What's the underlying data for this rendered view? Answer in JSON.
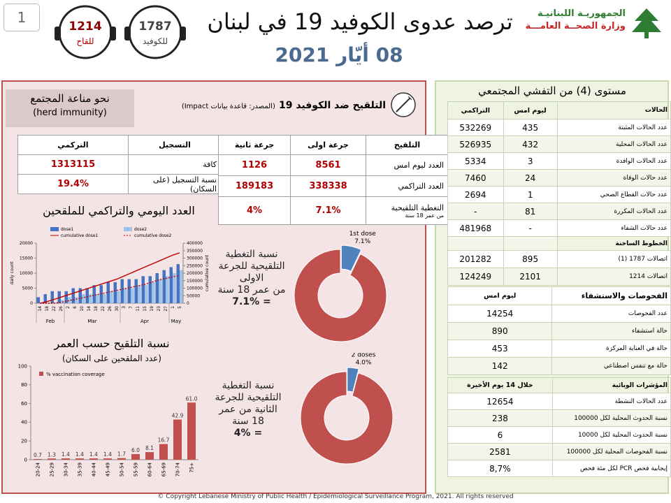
{
  "header": {
    "page_number": "1",
    "stat_vaccine": {
      "value": "1214",
      "label": "للقاح"
    },
    "stat_covid": {
      "value": "1787",
      "label": "للكوفيد"
    },
    "title": "ترصد عدوى الكوفيد 19 في لبنان",
    "date": "08 أيّار 2021",
    "ministry_line1": "الجمهوريـة اللبنانيـة",
    "ministry_line2": "وزارة الصحــة العامـــة"
  },
  "left": {
    "herd_title": "نحو مناعة المجتمع",
    "herd_subtitle": "(herd immunity)",
    "vaccination_title": "التلقيح ضد الكوفيد 19",
    "source": "(المصدر: قاعدة بيانات Impact)",
    "reg_table": {
      "header": [
        "التسجيل",
        "التركمي"
      ],
      "rows": [
        [
          "كافة",
          "1313115"
        ],
        [
          "نسبة التسجيل (على السكان)",
          "19.4%"
        ]
      ]
    },
    "vacc_table": {
      "header": [
        "التلقيح",
        "جرعة اولى",
        "جرعة ثانية"
      ],
      "rows": [
        [
          "العدد ليوم امس",
          "8561",
          "1126"
        ],
        [
          "العدد التراكمي",
          "338338",
          "189183"
        ],
        [
          "التغطية التلقيحية",
          "7.1%",
          "4%"
        ]
      ],
      "coverage_note": "من عمر 18 سنة"
    },
    "daily_title": "العدد اليومي والتراكمي للملقحين",
    "age_title": "نسبة التلقيح حسب العمر",
    "age_subtitle": "(عدد الملقحين على السكان)",
    "dose1_text": [
      "نسبة التغطية",
      "التلقيحية للجرعة",
      "الاولى",
      "من عمر 18 سنة",
      "= 7.1%"
    ],
    "dose2_text": [
      "نسبة التغطية",
      "التلقيحية للجرعة",
      "الثانية من عمر",
      "18 سنة",
      "= 4%"
    ]
  },
  "right": {
    "title": "مستوى (4) من التفشي المجتمعي",
    "cases_table": {
      "header": [
        "الحالات",
        "ليوم امس",
        "التراكمي"
      ],
      "rows": [
        [
          "عدد الحالات المثبتة",
          "435",
          "532269"
        ],
        [
          "عدد الحالات المحلية",
          "432",
          "526935"
        ],
        [
          "عدد الحالات الوافدة",
          "3",
          "5334"
        ],
        [
          "عدد حالات الوفاة",
          "24",
          "7460"
        ],
        [
          "عدد حالات القطاع الصحي",
          "1",
          "2694"
        ],
        [
          "عدد الحالات المكررة",
          "81",
          "-"
        ],
        [
          "عدد حالات الشفاء",
          "-",
          "481968"
        ]
      ]
    },
    "hotlines": {
      "title": "الخطوط الساخنة",
      "rows": [
        [
          "اتصالات 1787 (1)",
          "895",
          "201282"
        ],
        [
          "اتصالات 1214",
          "2101",
          "124249"
        ]
      ]
    },
    "tests_table": {
      "header": [
        "الفحوصات والاستشفاء",
        "ليوم امس"
      ],
      "rows": [
        [
          "عدد الفحوصات",
          "14254"
        ],
        [
          "حالة استشفاء",
          "890"
        ],
        [
          "حالة في العناية المركزة",
          "453"
        ],
        [
          "حالة مع تنفس اصطناعي",
          "142"
        ]
      ]
    },
    "indicators_table": {
      "header": [
        "المؤشرات الوبائية",
        "خلال 14 يوم الأخيرة"
      ],
      "rows": [
        [
          "عدد الحالات النشطة",
          "12654"
        ],
        [
          "نسبة الحدوث المحلية لكل 100000",
          "238"
        ],
        [
          "نسبة الحدوث المحلية لكل 10000",
          "6"
        ],
        [
          "نسبة الفحوصات المحلية لكل 100000",
          "2581"
        ],
        [
          "إيجابية فحص PCR لكل مئة فحص",
          "8,7%"
        ]
      ]
    }
  },
  "footer": "© Copyright Lebanese Ministry of Public Health / Epidemiological Surveillance Program, 2021. All rights reserved",
  "chart_data": [
    {
      "type": "bar",
      "categories": [
        "14",
        "18",
        "22",
        "26",
        "2",
        "6",
        "10",
        "14",
        "18",
        "22",
        "26",
        "30",
        "3",
        "7",
        "11",
        "15",
        "19",
        "23",
        "27",
        "1",
        "5"
      ],
      "x_groups": [
        {
          "label": "Feb",
          "start": 0,
          "end": 3
        },
        {
          "label": "Mar",
          "start": 4,
          "end": 11
        },
        {
          "label": "Apr",
          "start": 12,
          "end": 18
        },
        {
          "label": "May",
          "start": 19,
          "end": 20
        }
      ],
      "y_label": "daily count",
      "y2_label": "cumulative count",
      "ylim": [
        0,
        20000
      ],
      "yticks": [
        0,
        5000,
        10000,
        15000,
        20000
      ],
      "y2lim": [
        0,
        400000
      ],
      "y2ticks": [
        0,
        50000,
        100000,
        150000,
        200000,
        250000,
        300000,
        350000,
        400000
      ],
      "series": [
        {
          "name": "dose1",
          "color": "#4472c4",
          "values": [
            2000,
            3000,
            4000,
            4000,
            4000,
            5000,
            5000,
            5000,
            6000,
            6000,
            7000,
            7000,
            8000,
            8000,
            8000,
            9000,
            9000,
            10000,
            11000,
            12000,
            13000
          ]
        },
        {
          "name": "dose2",
          "color": "#9dc3e6",
          "values": [
            0,
            0,
            0,
            1000,
            2000,
            2000,
            3000,
            3000,
            3000,
            3000,
            4000,
            4000,
            5000,
            5000,
            6000,
            6000,
            7000,
            8000,
            9000,
            10000,
            11000
          ]
        },
        {
          "name": "cumulative dose1",
          "type": "line",
          "axis": "y2",
          "color": "#c00000",
          "values": [
            0,
            10000,
            25000,
            40000,
            55000,
            70000,
            85000,
            100000,
            115000,
            130000,
            145000,
            160000,
            180000,
            200000,
            220000,
            240000,
            260000,
            280000,
            300000,
            320000,
            335000
          ]
        },
        {
          "name": "cumulative dose2",
          "type": "line",
          "dash": true,
          "axis": "y2",
          "color": "#c00000",
          "values": [
            0,
            0,
            0,
            5000,
            15000,
            25000,
            35000,
            45000,
            55000,
            65000,
            75000,
            85000,
            95000,
            105000,
            115000,
            125000,
            140000,
            155000,
            165000,
            175000,
            185000
          ]
        }
      ]
    },
    {
      "type": "bar",
      "legend": "% vaccination coverage",
      "color": "#c0504d",
      "categories": [
        "20-24",
        "25-29",
        "30-34",
        "35-39",
        "40-44",
        "45-49",
        "50-54",
        "55-59",
        "60-64",
        "65-69",
        "70-74",
        "75+"
      ],
      "values": [
        0.7,
        1.3,
        1.4,
        1.4,
        1.4,
        1.4,
        1.7,
        6.0,
        8.1,
        16.7,
        42.9,
        61.0
      ],
      "value_labels": [
        "0.7",
        "1.3",
        "1.4",
        "1.4",
        "1.4",
        "1.4",
        "1.7",
        "6.0",
        "8.1",
        "16.7",
        "42.9",
        "61.0"
      ],
      "ylim": [
        0,
        100
      ],
      "yticks": [
        0,
        20,
        40,
        60,
        80,
        100
      ]
    },
    {
      "type": "pie",
      "categories": [
        "1st dose",
        null
      ],
      "values": [
        7.1,
        92.9
      ],
      "value_labels": [
        "7.1%",
        null
      ],
      "colors": [
        "#4f81bd",
        "#c0504d"
      ]
    },
    {
      "type": "pie",
      "categories": [
        "2 doses",
        null
      ],
      "values": [
        4.0,
        96.0
      ],
      "value_labels": [
        "4.0%",
        null
      ],
      "colors": [
        "#4f81bd",
        "#c0504d"
      ]
    }
  ]
}
